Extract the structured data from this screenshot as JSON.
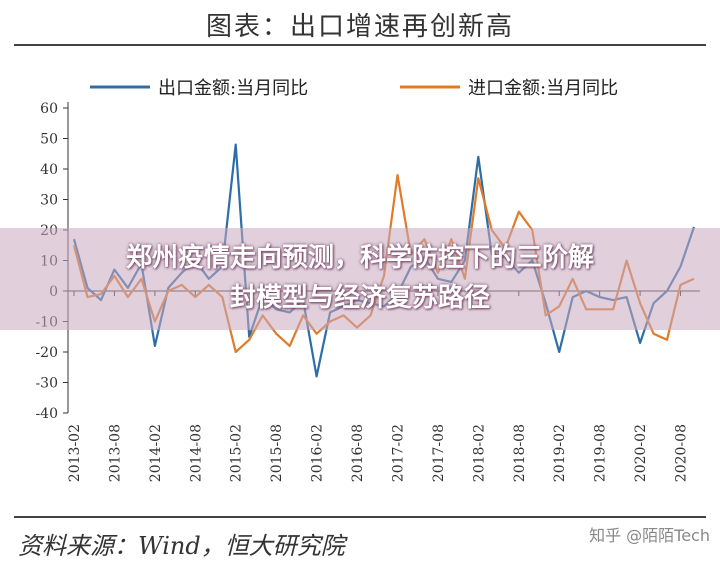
{
  "header": {
    "title": "图表：出口增速再创新高"
  },
  "footer": {
    "source": "资料来源：Wind，恒大研究院",
    "watermark": "知乎 @陌陌Tech"
  },
  "overlay": {
    "headline_line1": "郑州疫情走向预测，科学防控下的三阶解",
    "headline_line2": "封模型与经济复苏路径"
  },
  "chart_data": {
    "type": "line",
    "title": "出口增速再创新高",
    "xlabel": "",
    "ylabel": "",
    "ylim": [
      -40,
      60
    ],
    "yticks": [
      -40,
      -30,
      -20,
      -10,
      0,
      10,
      20,
      30,
      40,
      50,
      60
    ],
    "xtick_labels": [
      "2013-02",
      "2013-08",
      "2014-02",
      "2014-08",
      "2015-02",
      "2015-08",
      "2016-02",
      "2016-08",
      "2017-02",
      "2017-08",
      "2018-02",
      "2018-08",
      "2019-02",
      "2019-08",
      "2020-02",
      "2020-08"
    ],
    "legend_position": "top",
    "grid": false,
    "x": [
      "2013-02",
      "2013-04",
      "2013-06",
      "2013-08",
      "2013-10",
      "2013-12",
      "2014-02",
      "2014-04",
      "2014-06",
      "2014-08",
      "2014-10",
      "2014-12",
      "2015-02",
      "2015-04",
      "2015-06",
      "2015-08",
      "2015-10",
      "2015-12",
      "2016-02",
      "2016-04",
      "2016-06",
      "2016-08",
      "2016-10",
      "2016-12",
      "2017-02",
      "2017-04",
      "2017-06",
      "2017-08",
      "2017-10",
      "2017-12",
      "2018-02",
      "2018-04",
      "2018-06",
      "2018-08",
      "2018-10",
      "2018-12",
      "2019-02",
      "2019-04",
      "2019-06",
      "2019-08",
      "2019-10",
      "2019-12",
      "2020-02",
      "2020-04",
      "2020-06",
      "2020-08",
      "2020-10"
    ],
    "series": [
      {
        "name": "出口金额:当月同比",
        "color": "#2e6da8",
        "values": [
          17,
          1,
          -3,
          7,
          1,
          9,
          -18,
          1,
          6,
          10,
          4,
          8,
          48,
          -15,
          -2,
          -6,
          -7,
          -3,
          -28,
          -7,
          -5,
          -3,
          -4,
          -5,
          -1,
          8,
          11,
          4,
          3,
          10,
          44,
          12,
          11,
          6,
          10,
          -4,
          -20,
          -2,
          0,
          -2,
          -3,
          -2,
          -17,
          -4,
          0,
          8,
          21
        ],
        "color_name": "blue"
      },
      {
        "name": "进口金额:当月同比",
        "color": "#e07b2a",
        "values": [
          15,
          -2,
          -1,
          5,
          -2,
          4,
          -10,
          0,
          2,
          -2,
          2,
          -2,
          -20,
          -16,
          -8,
          -14,
          -18,
          -8,
          -14,
          -10,
          -8,
          -12,
          -8,
          5,
          38,
          12,
          17,
          6,
          17,
          4,
          37,
          20,
          14,
          26,
          20,
          -8,
          -5,
          4,
          -6,
          -6,
          -6,
          10,
          -4,
          -14,
          -16,
          2,
          4
        ],
        "color_name": "orange"
      }
    ]
  }
}
